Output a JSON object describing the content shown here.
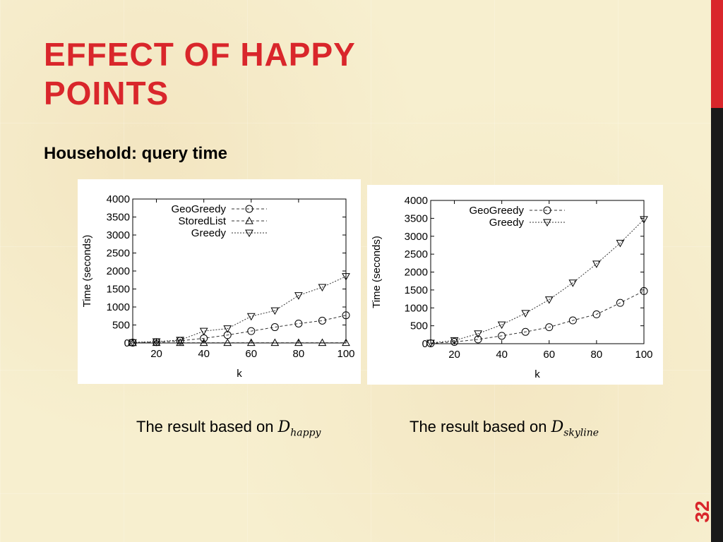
{
  "slide": {
    "title_line1": "EFFECT OF HAPPY",
    "title_line2": "POINTS",
    "subtitle": "Household: query time",
    "page_number": "32",
    "accent_color": "#d9262b",
    "captions": [
      {
        "prefix": "The result based on ",
        "math_base": "D",
        "math_sub": "happy"
      },
      {
        "prefix": "The result based on ",
        "math_base": "D",
        "math_sub": "skyline"
      }
    ]
  },
  "chart_data": [
    {
      "type": "line",
      "xlabel": "k",
      "ylabel": "Time (seconds)",
      "xlim": [
        10,
        100
      ],
      "ylim": [
        0,
        4000
      ],
      "xticks": [
        20,
        40,
        60,
        80,
        100
      ],
      "yticks": [
        0,
        500,
        1000,
        1500,
        2000,
        2500,
        3000,
        3500,
        4000
      ],
      "legend_position": "top-left",
      "x": [
        10,
        20,
        30,
        40,
        50,
        60,
        70,
        80,
        90,
        100
      ],
      "series": [
        {
          "name": "GeoGreedy",
          "marker": "circle",
          "dash": "4,3",
          "values": [
            10,
            25,
            60,
            130,
            220,
            330,
            440,
            540,
            620,
            770
          ]
        },
        {
          "name": "StoredList",
          "marker": "triangle-up",
          "dash": "4,3",
          "values": [
            5,
            8,
            8,
            8,
            8,
            8,
            8,
            8,
            8,
            8
          ]
        },
        {
          "name": "Greedy",
          "marker": "triangle-down",
          "dash": "2,2",
          "values": [
            15,
            40,
            80,
            330,
            400,
            740,
            900,
            1320,
            1550,
            1850
          ]
        }
      ]
    },
    {
      "type": "line",
      "xlabel": "k",
      "ylabel": "Time (seconds)",
      "xlim": [
        10,
        100
      ],
      "ylim": [
        0,
        4000
      ],
      "xticks": [
        20,
        40,
        60,
        80,
        100
      ],
      "yticks": [
        0,
        500,
        1000,
        1500,
        2000,
        2500,
        3000,
        3500,
        4000
      ],
      "legend_position": "top-left",
      "x": [
        10,
        20,
        30,
        40,
        50,
        60,
        70,
        80,
        90,
        100
      ],
      "series": [
        {
          "name": "GeoGreedy",
          "marker": "circle",
          "dash": "4,3",
          "values": [
            10,
            50,
            120,
            220,
            330,
            460,
            650,
            820,
            1140,
            1470
          ]
        },
        {
          "name": "Greedy",
          "marker": "triangle-down",
          "dash": "2,2",
          "values": [
            20,
            90,
            280,
            530,
            850,
            1230,
            1700,
            2230,
            2810,
            3470
          ]
        }
      ]
    }
  ]
}
